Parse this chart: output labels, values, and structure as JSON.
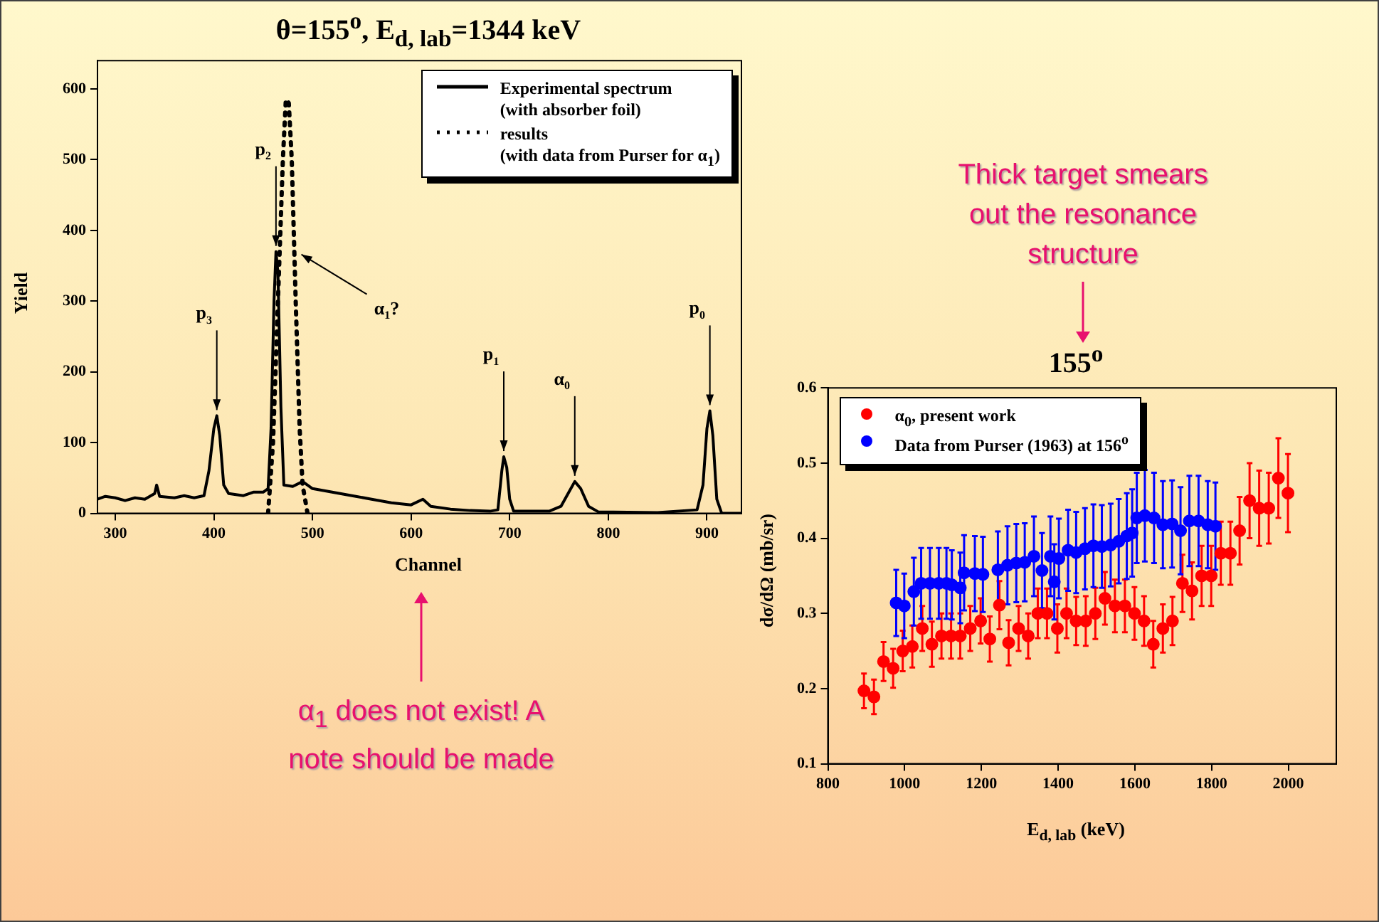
{
  "chart_data": [
    {
      "type": "line",
      "title": "θ=155$^{o}$, E$_{d, lab}$=1344 keV",
      "xlabel": "Channel",
      "ylabel": "Yield",
      "xlim": [
        282,
        935
      ],
      "ylim": [
        0,
        640
      ],
      "xticks": [
        300,
        400,
        500,
        600,
        700,
        800,
        900
      ],
      "yticks": [
        0,
        100,
        200,
        300,
        400,
        500,
        600
      ],
      "grid": false,
      "legend": "top right",
      "marker": "none",
      "series": [
        {
          "name": "Experimental spectrum\n(with absorber foil)",
          "color": "#000000",
          "line_style": "solid",
          "x": [
            282,
            290,
            300,
            310,
            320,
            330,
            340,
            342,
            345,
            360,
            370,
            380,
            390,
            395,
            400,
            403,
            406,
            410,
            415,
            430,
            440,
            450,
            455,
            458,
            461,
            463,
            465,
            468,
            471,
            480,
            490,
            500,
            520,
            540,
            560,
            580,
            600,
            612,
            620,
            640,
            660,
            680,
            688,
            692,
            694,
            697,
            700,
            704,
            740,
            752,
            760,
            766,
            772,
            780,
            790,
            850,
            890,
            896,
            900,
            903,
            906,
            910,
            915,
            935
          ],
          "values": [
            20,
            24,
            22,
            18,
            22,
            20,
            28,
            40,
            24,
            22,
            25,
            22,
            25,
            60,
            120,
            138,
            110,
            40,
            28,
            25,
            30,
            30,
            35,
            120,
            300,
            370,
            340,
            150,
            40,
            38,
            45,
            35,
            30,
            25,
            20,
            15,
            12,
            20,
            10,
            6,
            4,
            3,
            5,
            60,
            80,
            65,
            20,
            3,
            3,
            10,
            30,
            45,
            35,
            10,
            2,
            1,
            5,
            40,
            120,
            145,
            110,
            20,
            0,
            0
          ]
        },
        {
          "name": "results\n(with data from Purser for α$_{1}$)",
          "color": "#000000",
          "line_style": "dotted",
          "x": [
            455,
            460,
            465,
            470,
            473,
            476,
            479,
            483,
            487,
            490,
            495
          ],
          "values": [
            0,
            100,
            300,
            500,
            585,
            580,
            500,
            300,
            120,
            40,
            0
          ]
        }
      ],
      "annotations": [
        {
          "text": "p$_{3}$",
          "x": 403,
          "y": 138
        },
        {
          "text": "p$_{2}$",
          "x": 463,
          "y": 370
        },
        {
          "text": "p$_{1}$",
          "x": 694,
          "y": 80
        },
        {
          "text": "α$_{0}$",
          "x": 766,
          "y": 45
        },
        {
          "text": "p$_{0}$",
          "x": 903,
          "y": 145
        },
        {
          "text": "α$_{1}$?",
          "x": 483,
          "y": 370
        },
        "α$_{1}$ does not exist! A\nnote should be made"
      ]
    },
    {
      "type": "scatter",
      "title": "155$^{o}$",
      "xlabel": "E$_{d, lab}$ (keV)",
      "ylabel": "dσ/dΩ (mb/sr)",
      "xlim": [
        800,
        2125
      ],
      "ylim": [
        0.1,
        0.6
      ],
      "xticks": [
        800,
        1000,
        1200,
        1400,
        1600,
        1800,
        2000
      ],
      "yticks": [
        0.1,
        0.2,
        0.3,
        0.4,
        0.5,
        0.6
      ],
      "grid": false,
      "legend": "top left",
      "marker": "circle",
      "series": [
        {
          "name": "α$_{0}$, present work",
          "color": "#ff0000",
          "x": [
            894,
            920,
            945,
            970,
            995,
            1020,
            1046,
            1071,
            1096,
            1121,
            1145,
            1171,
            1198,
            1222,
            1247,
            1271,
            1297,
            1322,
            1347,
            1371,
            1398,
            1422,
            1447,
            1472,
            1497,
            1522,
            1548,
            1574,
            1599,
            1624,
            1648,
            1673,
            1698,
            1724,
            1749,
            1774,
            1799,
            1824,
            1849,
            1873,
            1899,
            1924,
            1949,
            1974,
            1999
          ],
          "values": [
            0.197,
            0.189,
            0.236,
            0.227,
            0.25,
            0.256,
            0.28,
            0.259,
            0.27,
            0.27,
            0.27,
            0.28,
            0.29,
            0.266,
            0.311,
            0.261,
            0.28,
            0.27,
            0.3,
            0.3,
            0.28,
            0.3,
            0.29,
            0.29,
            0.3,
            0.32,
            0.31,
            0.31,
            0.3,
            0.29,
            0.259,
            0.28,
            0.29,
            0.34,
            0.33,
            0.35,
            0.35,
            0.38,
            0.38,
            0.41,
            0.45,
            0.44,
            0.44,
            0.48,
            0.46
          ],
          "errors": [
            0.023,
            0.023,
            0.026,
            0.026,
            0.027,
            0.028,
            0.03,
            0.03,
            0.03,
            0.03,
            0.03,
            0.03,
            0.03,
            0.03,
            0.032,
            0.03,
            0.03,
            0.03,
            0.033,
            0.033,
            0.032,
            0.033,
            0.032,
            0.033,
            0.034,
            0.035,
            0.035,
            0.035,
            0.035,
            0.033,
            0.031,
            0.032,
            0.032,
            0.038,
            0.038,
            0.04,
            0.04,
            0.042,
            0.042,
            0.045,
            0.05,
            0.05,
            0.047,
            0.053,
            0.052
          ]
        },
        {
          "name": "Data from Purser (1963) at 156$^{o}$",
          "color": "#0000ff",
          "x": [
            978,
            999,
            1024,
            1043,
            1066,
            1089,
            1109,
            1123,
            1145,
            1155,
            1183,
            1204,
            1243,
            1268,
            1291,
            1313,
            1337,
            1358,
            1380,
            1390,
            1402,
            1426,
            1447,
            1470,
            1492,
            1514,
            1537,
            1558,
            1579,
            1593,
            1605,
            1626,
            1650,
            1673,
            1697,
            1719,
            1742,
            1766,
            1790,
            1810
          ],
          "values": [
            0.314,
            0.31,
            0.329,
            0.34,
            0.34,
            0.34,
            0.34,
            0.338,
            0.334,
            0.354,
            0.353,
            0.352,
            0.358,
            0.364,
            0.367,
            0.368,
            0.376,
            0.357,
            0.376,
            0.342,
            0.373,
            0.384,
            0.381,
            0.386,
            0.39,
            0.389,
            0.391,
            0.396,
            0.403,
            0.407,
            0.427,
            0.43,
            0.427,
            0.418,
            0.419,
            0.41,
            0.423,
            0.423,
            0.418,
            0.416
          ],
          "errors": [
            0.044,
            0.043,
            0.045,
            0.047,
            0.047,
            0.047,
            0.047,
            0.046,
            0.047,
            0.05,
            0.05,
            0.05,
            0.051,
            0.052,
            0.052,
            0.052,
            0.053,
            0.05,
            0.053,
            0.05,
            0.053,
            0.054,
            0.054,
            0.054,
            0.055,
            0.055,
            0.055,
            0.056,
            0.057,
            0.058,
            0.06,
            0.061,
            0.06,
            0.058,
            0.058,
            0.058,
            0.06,
            0.06,
            0.058,
            0.058
          ]
        }
      ],
      "annotations": [
        "Thick target smears\nout the resonance\nstructure"
      ]
    }
  ]
}
